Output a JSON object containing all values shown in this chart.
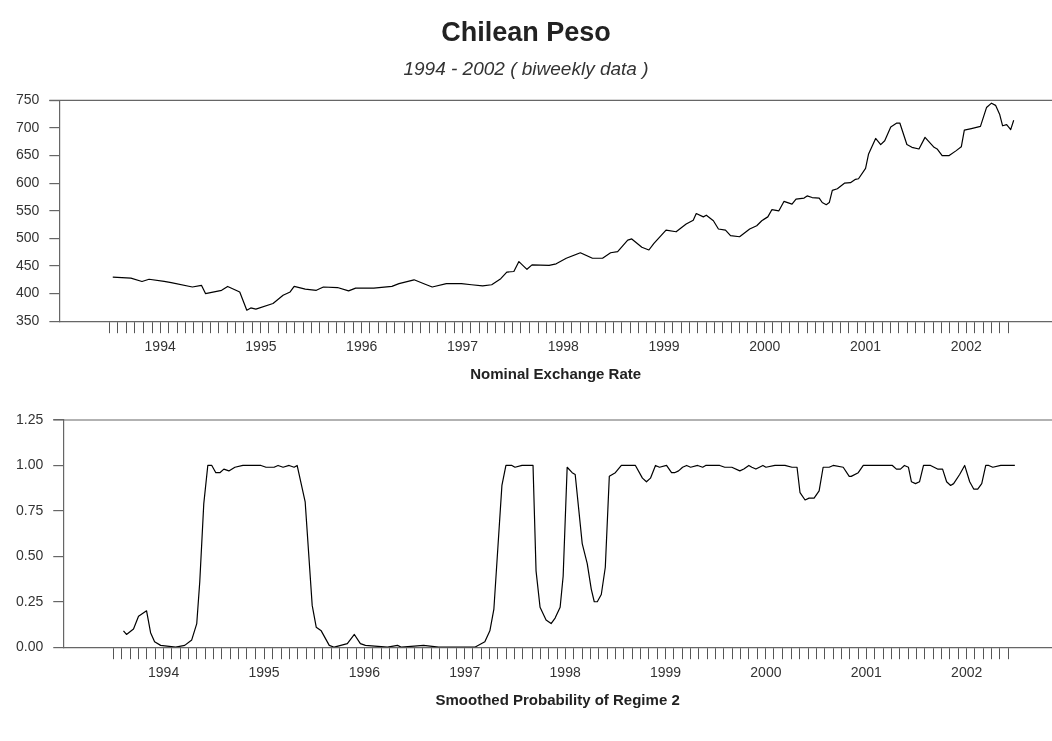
{
  "chart_data": [
    {
      "type": "line",
      "title": "Chilean Peso",
      "subtitle": "1994 - 2002 ( biweekly data )",
      "xlabel": "Nominal Exchange Rate",
      "color": "#000000",
      "grid": false,
      "legend": false,
      "marker": "none",
      "line_style": "solid",
      "x": [
        1993.53,
        1993.71,
        1993.82,
        1993.89,
        1994.04,
        1994.11,
        1994.32,
        1994.41,
        1994.45,
        1994.61,
        1994.67,
        1994.79,
        1994.86,
        1994.9,
        1994.95,
        1995.12,
        1995.22,
        1995.29,
        1995.33,
        1995.44,
        1995.55,
        1995.62,
        1995.76,
        1995.87,
        1995.94,
        1996.12,
        1996.3,
        1996.37,
        1996.52,
        1996.63,
        1996.7,
        1996.84,
        1996.99,
        1997.09,
        1997.2,
        1997.29,
        1997.38,
        1997.44,
        1997.51,
        1997.56,
        1997.64,
        1997.69,
        1997.86,
        1997.93,
        1998.03,
        1998.17,
        1998.29,
        1998.39,
        1998.47,
        1998.54,
        1998.64,
        1998.68,
        1998.78,
        1998.85,
        1998.9,
        1999.02,
        1999.12,
        1999.22,
        1999.29,
        1999.32,
        1999.39,
        1999.42,
        1999.49,
        1999.54,
        1999.61,
        1999.66,
        1999.75,
        1999.85,
        1999.92,
        1999.97,
        2000.03,
        2000.07,
        2000.14,
        2000.19,
        2000.27,
        2000.31,
        2000.39,
        2000.42,
        2000.47,
        2000.54,
        2000.57,
        2000.61,
        2000.64,
        2000.67,
        2000.72,
        2000.79,
        2000.85,
        2000.9,
        2000.93,
        2001.0,
        2001.03,
        2001.1,
        2001.15,
        2001.19,
        2001.25,
        2001.31,
        2001.34,
        2001.41,
        2001.46,
        2001.53,
        2001.59,
        2001.68,
        2001.71,
        2001.76,
        2001.83,
        2001.9,
        2001.95,
        2001.98,
        2002.05,
        2002.14,
        2002.2,
        2002.25,
        2002.29,
        2002.33,
        2002.36,
        2002.4,
        2002.44,
        2002.47
      ],
      "values": [
        430,
        428,
        422,
        426,
        422,
        420,
        412,
        415,
        400,
        406,
        413,
        403,
        370,
        374,
        372,
        382,
        397,
        403,
        413,
        408,
        406,
        412,
        411,
        405,
        410,
        410,
        413,
        418,
        425,
        417,
        412,
        418,
        418,
        416,
        414,
        416,
        427,
        439,
        440,
        458,
        444,
        452,
        451,
        454,
        464,
        474,
        464,
        464,
        474,
        476,
        497,
        499,
        484,
        479,
        491,
        515,
        512,
        526,
        533,
        545,
        539,
        542,
        532,
        517,
        515,
        505,
        503,
        517,
        523,
        532,
        539,
        552,
        550,
        567,
        562,
        571,
        573,
        577,
        574,
        573,
        565,
        561,
        565,
        587,
        590,
        600,
        601,
        607,
        608,
        627,
        653,
        681,
        670,
        677,
        702,
        709,
        709,
        670,
        665,
        662,
        683,
        665,
        662,
        650,
        650,
        659,
        666,
        696,
        699,
        703,
        737,
        745,
        741,
        725,
        704,
        706,
        697,
        714
      ],
      "xlim": [
        1993.0,
        2002.85
      ],
      "ylim": [
        350,
        750
      ],
      "yticks": [
        350,
        400,
        450,
        500,
        550,
        600,
        650,
        700,
        750
      ],
      "xticks": [
        {
          "value": 1993.5,
          "label": null
        },
        {
          "value": 1993.58,
          "label": null
        },
        {
          "value": 1993.67,
          "label": null
        },
        {
          "value": 1993.75,
          "label": null
        },
        {
          "value": 1993.83,
          "label": null
        },
        {
          "value": 1993.92,
          "label": null
        },
        {
          "value": 1994,
          "label": "1994"
        },
        {
          "value": 1994.08,
          "label": null
        },
        {
          "value": 1994.17,
          "label": null
        },
        {
          "value": 1994.25,
          "label": null
        },
        {
          "value": 1994.33,
          "label": null
        },
        {
          "value": 1994.42,
          "label": null
        },
        {
          "value": 1994.5,
          "label": null
        },
        {
          "value": 1994.58,
          "label": null
        },
        {
          "value": 1994.67,
          "label": null
        },
        {
          "value": 1994.75,
          "label": null
        },
        {
          "value": 1994.83,
          "label": null
        },
        {
          "value": 1994.92,
          "label": null
        },
        {
          "value": 1995,
          "label": "1995"
        },
        {
          "value": 1995.08,
          "label": null
        },
        {
          "value": 1995.17,
          "label": null
        },
        {
          "value": 1995.25,
          "label": null
        },
        {
          "value": 1995.33,
          "label": null
        },
        {
          "value": 1995.42,
          "label": null
        },
        {
          "value": 1995.5,
          "label": null
        },
        {
          "value": 1995.58,
          "label": null
        },
        {
          "value": 1995.67,
          "label": null
        },
        {
          "value": 1995.75,
          "label": null
        },
        {
          "value": 1995.83,
          "label": null
        },
        {
          "value": 1995.92,
          "label": null
        },
        {
          "value": 1996,
          "label": "1996"
        },
        {
          "value": 1996.08,
          "label": null
        },
        {
          "value": 1996.17,
          "label": null
        },
        {
          "value": 1996.25,
          "label": null
        },
        {
          "value": 1996.33,
          "label": null
        },
        {
          "value": 1996.42,
          "label": null
        },
        {
          "value": 1996.5,
          "label": null
        },
        {
          "value": 1996.58,
          "label": null
        },
        {
          "value": 1996.67,
          "label": null
        },
        {
          "value": 1996.75,
          "label": null
        },
        {
          "value": 1996.83,
          "label": null
        },
        {
          "value": 1996.92,
          "label": null
        },
        {
          "value": 1997,
          "label": "1997"
        },
        {
          "value": 1997.08,
          "label": null
        },
        {
          "value": 1997.17,
          "label": null
        },
        {
          "value": 1997.25,
          "label": null
        },
        {
          "value": 1997.33,
          "label": null
        },
        {
          "value": 1997.42,
          "label": null
        },
        {
          "value": 1997.5,
          "label": null
        },
        {
          "value": 1997.58,
          "label": null
        },
        {
          "value": 1997.67,
          "label": null
        },
        {
          "value": 1997.75,
          "label": null
        },
        {
          "value": 1997.83,
          "label": null
        },
        {
          "value": 1997.92,
          "label": null
        },
        {
          "value": 1998,
          "label": "1998"
        },
        {
          "value": 1998.08,
          "label": null
        },
        {
          "value": 1998.17,
          "label": null
        },
        {
          "value": 1998.25,
          "label": null
        },
        {
          "value": 1998.33,
          "label": null
        },
        {
          "value": 1998.42,
          "label": null
        },
        {
          "value": 1998.5,
          "label": null
        },
        {
          "value": 1998.58,
          "label": null
        },
        {
          "value": 1998.67,
          "label": null
        },
        {
          "value": 1998.75,
          "label": null
        },
        {
          "value": 1998.83,
          "label": null
        },
        {
          "value": 1998.92,
          "label": null
        },
        {
          "value": 1999,
          "label": "1999"
        },
        {
          "value": 1999.08,
          "label": null
        },
        {
          "value": 1999.17,
          "label": null
        },
        {
          "value": 1999.25,
          "label": null
        },
        {
          "value": 1999.33,
          "label": null
        },
        {
          "value": 1999.42,
          "label": null
        },
        {
          "value": 1999.5,
          "label": null
        },
        {
          "value": 1999.58,
          "label": null
        },
        {
          "value": 1999.67,
          "label": null
        },
        {
          "value": 1999.75,
          "label": null
        },
        {
          "value": 1999.83,
          "label": null
        },
        {
          "value": 1999.92,
          "label": null
        },
        {
          "value": 2000,
          "label": "2000"
        },
        {
          "value": 2000.08,
          "label": null
        },
        {
          "value": 2000.17,
          "label": null
        },
        {
          "value": 2000.25,
          "label": null
        },
        {
          "value": 2000.33,
          "label": null
        },
        {
          "value": 2000.42,
          "label": null
        },
        {
          "value": 2000.5,
          "label": null
        },
        {
          "value": 2000.58,
          "label": null
        },
        {
          "value": 2000.67,
          "label": null
        },
        {
          "value": 2000.75,
          "label": null
        },
        {
          "value": 2000.83,
          "label": null
        },
        {
          "value": 2000.92,
          "label": null
        },
        {
          "value": 2001,
          "label": "2001"
        },
        {
          "value": 2001.08,
          "label": null
        },
        {
          "value": 2001.17,
          "label": null
        },
        {
          "value": 2001.25,
          "label": null
        },
        {
          "value": 2001.33,
          "label": null
        },
        {
          "value": 2001.42,
          "label": null
        },
        {
          "value": 2001.5,
          "label": null
        },
        {
          "value": 2001.58,
          "label": null
        },
        {
          "value": 2001.67,
          "label": null
        },
        {
          "value": 2001.75,
          "label": null
        },
        {
          "value": 2001.83,
          "label": null
        },
        {
          "value": 2001.92,
          "label": null
        },
        {
          "value": 2002,
          "label": "2002"
        },
        {
          "value": 2002.08,
          "label": null
        },
        {
          "value": 2002.17,
          "label": null
        },
        {
          "value": 2002.25,
          "label": null
        },
        {
          "value": 2002.33,
          "label": null
        },
        {
          "value": 2002.42,
          "label": null
        }
      ]
    },
    {
      "type": "line",
      "xlabel": "Smoothed Probability of Regime 2",
      "color": "#000000",
      "grid": false,
      "legend": false,
      "marker": "none",
      "line_style": "solid",
      "x": [
        1993.6,
        1993.63,
        1993.7,
        1993.75,
        1993.83,
        1993.87,
        1993.91,
        1993.97,
        1994.12,
        1994.21,
        1994.28,
        1994.33,
        1994.36,
        1994.4,
        1994.44,
        1994.48,
        1994.52,
        1994.56,
        1994.6,
        1994.65,
        1994.71,
        1994.79,
        1994.97,
        1995.02,
        1995.1,
        1995.14,
        1995.19,
        1995.25,
        1995.3,
        1995.33,
        1995.41,
        1995.48,
        1995.52,
        1995.57,
        1995.65,
        1995.7,
        1995.83,
        1995.9,
        1995.96,
        1996.01,
        1996.23,
        1996.33,
        1996.37,
        1996.59,
        1996.74,
        1997.1,
        1997.2,
        1997.25,
        1997.29,
        1997.37,
        1997.41,
        1997.47,
        1997.5,
        1997.57,
        1997.68,
        1997.71,
        1997.75,
        1997.81,
        1997.86,
        1997.9,
        1997.95,
        1997.98,
        1998.02,
        1998.07,
        1998.1,
        1998.17,
        1998.22,
        1998.26,
        1998.29,
        1998.32,
        1998.36,
        1998.4,
        1998.44,
        1998.5,
        1998.56,
        1998.7,
        1998.77,
        1998.81,
        1998.85,
        1998.9,
        1998.94,
        1999.01,
        1999.06,
        1999.09,
        1999.13,
        1999.17,
        1999.21,
        1999.25,
        1999.32,
        1999.37,
        1999.4,
        1999.54,
        1999.59,
        1999.66,
        1999.74,
        1999.78,
        1999.83,
        1999.86,
        1999.9,
        1999.97,
        2000.0,
        2000.09,
        2000.19,
        2000.26,
        2000.31,
        2000.34,
        2000.39,
        2000.43,
        2000.48,
        2000.53,
        2000.57,
        2000.63,
        2000.67,
        2000.77,
        2000.83,
        2000.85,
        2000.92,
        2000.97,
        2001.08,
        2001.26,
        2001.3,
        2001.34,
        2001.38,
        2001.42,
        2001.45,
        2001.49,
        2001.53,
        2001.57,
        2001.64,
        2001.71,
        2001.76,
        2001.8,
        2001.84,
        2001.87,
        2001.93,
        2001.98,
        2002.03,
        2002.07,
        2002.11,
        2002.15,
        2002.19,
        2002.22,
        2002.26,
        2002.34,
        2002.48
      ],
      "values": [
        0.09,
        0.07,
        0.1,
        0.17,
        0.2,
        0.08,
        0.03,
        0.01,
        0.0,
        0.01,
        0.04,
        0.13,
        0.36,
        0.79,
        1.0,
        1.0,
        0.96,
        0.96,
        0.98,
        0.97,
        0.99,
        1.0,
        1.0,
        0.99,
        0.99,
        1.0,
        0.99,
        1.0,
        0.99,
        1.0,
        0.8,
        0.23,
        0.11,
        0.09,
        0.01,
        0.0,
        0.02,
        0.07,
        0.02,
        0.01,
        0.0,
        0.01,
        0.0,
        0.01,
        0.0,
        0.0,
        0.03,
        0.09,
        0.21,
        0.89,
        1.0,
        1.0,
        0.99,
        1.0,
        1.0,
        0.42,
        0.22,
        0.15,
        0.13,
        0.16,
        0.22,
        0.39,
        0.99,
        0.96,
        0.95,
        0.57,
        0.46,
        0.32,
        0.25,
        0.25,
        0.29,
        0.44,
        0.94,
        0.96,
        1.0,
        1.0,
        0.93,
        0.91,
        0.93,
        1.0,
        0.99,
        1.0,
        0.96,
        0.96,
        0.97,
        0.99,
        1.0,
        0.99,
        1.0,
        0.99,
        1.0,
        1.0,
        0.99,
        0.99,
        0.97,
        0.98,
        1.0,
        0.99,
        0.98,
        1.0,
        0.99,
        1.0,
        1.0,
        0.99,
        0.99,
        0.85,
        0.81,
        0.82,
        0.82,
        0.86,
        0.99,
        0.99,
        1.0,
        0.99,
        0.94,
        0.94,
        0.96,
        1.0,
        1.0,
        1.0,
        0.98,
        0.98,
        1.0,
        0.99,
        0.91,
        0.9,
        0.91,
        1.0,
        1.0,
        0.98,
        0.98,
        0.91,
        0.89,
        0.9,
        0.95,
        1.0,
        0.91,
        0.87,
        0.87,
        0.9,
        1.0,
        1.0,
        0.99,
        1.0,
        1.0
      ],
      "xlim": [
        1993.0,
        2002.85
      ],
      "ylim": [
        0,
        1.25
      ],
      "yticks": [
        {
          "value": 0,
          "label": "0.00"
        },
        {
          "value": 0.25,
          "label": "0.25"
        },
        {
          "value": 0.5,
          "label": "0.50"
        },
        {
          "value": 0.75,
          "label": "0.75"
        },
        {
          "value": 1,
          "label": "1.00"
        },
        {
          "value": 1.25,
          "label": "1.25"
        }
      ],
      "xticks": [
        {
          "value": 1993.5,
          "label": null
        },
        {
          "value": 1993.58,
          "label": null
        },
        {
          "value": 1993.67,
          "label": null
        },
        {
          "value": 1993.75,
          "label": null
        },
        {
          "value": 1993.83,
          "label": null
        },
        {
          "value": 1993.92,
          "label": null
        },
        {
          "value": 1994,
          "label": "1994"
        },
        {
          "value": 1994.08,
          "label": null
        },
        {
          "value": 1994.17,
          "label": null
        },
        {
          "value": 1994.25,
          "label": null
        },
        {
          "value": 1994.33,
          "label": null
        },
        {
          "value": 1994.42,
          "label": null
        },
        {
          "value": 1994.5,
          "label": null
        },
        {
          "value": 1994.58,
          "label": null
        },
        {
          "value": 1994.67,
          "label": null
        },
        {
          "value": 1994.75,
          "label": null
        },
        {
          "value": 1994.83,
          "label": null
        },
        {
          "value": 1994.92,
          "label": null
        },
        {
          "value": 1995,
          "label": "1995"
        },
        {
          "value": 1995.08,
          "label": null
        },
        {
          "value": 1995.17,
          "label": null
        },
        {
          "value": 1995.25,
          "label": null
        },
        {
          "value": 1995.33,
          "label": null
        },
        {
          "value": 1995.42,
          "label": null
        },
        {
          "value": 1995.5,
          "label": null
        },
        {
          "value": 1995.58,
          "label": null
        },
        {
          "value": 1995.67,
          "label": null
        },
        {
          "value": 1995.75,
          "label": null
        },
        {
          "value": 1995.83,
          "label": null
        },
        {
          "value": 1995.92,
          "label": null
        },
        {
          "value": 1996,
          "label": "1996"
        },
        {
          "value": 1996.08,
          "label": null
        },
        {
          "value": 1996.17,
          "label": null
        },
        {
          "value": 1996.25,
          "label": null
        },
        {
          "value": 1996.33,
          "label": null
        },
        {
          "value": 1996.42,
          "label": null
        },
        {
          "value": 1996.5,
          "label": null
        },
        {
          "value": 1996.58,
          "label": null
        },
        {
          "value": 1996.67,
          "label": null
        },
        {
          "value": 1996.75,
          "label": null
        },
        {
          "value": 1996.83,
          "label": null
        },
        {
          "value": 1996.92,
          "label": null
        },
        {
          "value": 1997,
          "label": "1997"
        },
        {
          "value": 1997.08,
          "label": null
        },
        {
          "value": 1997.17,
          "label": null
        },
        {
          "value": 1997.25,
          "label": null
        },
        {
          "value": 1997.33,
          "label": null
        },
        {
          "value": 1997.42,
          "label": null
        },
        {
          "value": 1997.5,
          "label": null
        },
        {
          "value": 1997.58,
          "label": null
        },
        {
          "value": 1997.67,
          "label": null
        },
        {
          "value": 1997.75,
          "label": null
        },
        {
          "value": 1997.83,
          "label": null
        },
        {
          "value": 1997.92,
          "label": null
        },
        {
          "value": 1998,
          "label": "1998"
        },
        {
          "value": 1998.08,
          "label": null
        },
        {
          "value": 1998.17,
          "label": null
        },
        {
          "value": 1998.25,
          "label": null
        },
        {
          "value": 1998.33,
          "label": null
        },
        {
          "value": 1998.42,
          "label": null
        },
        {
          "value": 1998.5,
          "label": null
        },
        {
          "value": 1998.58,
          "label": null
        },
        {
          "value": 1998.67,
          "label": null
        },
        {
          "value": 1998.75,
          "label": null
        },
        {
          "value": 1998.83,
          "label": null
        },
        {
          "value": 1998.92,
          "label": null
        },
        {
          "value": 1999,
          "label": "1999"
        },
        {
          "value": 1999.08,
          "label": null
        },
        {
          "value": 1999.17,
          "label": null
        },
        {
          "value": 1999.25,
          "label": null
        },
        {
          "value": 1999.33,
          "label": null
        },
        {
          "value": 1999.42,
          "label": null
        },
        {
          "value": 1999.5,
          "label": null
        },
        {
          "value": 1999.58,
          "label": null
        },
        {
          "value": 1999.67,
          "label": null
        },
        {
          "value": 1999.75,
          "label": null
        },
        {
          "value": 1999.83,
          "label": null
        },
        {
          "value": 1999.92,
          "label": null
        },
        {
          "value": 2000,
          "label": "2000"
        },
        {
          "value": 2000.08,
          "label": null
        },
        {
          "value": 2000.17,
          "label": null
        },
        {
          "value": 2000.25,
          "label": null
        },
        {
          "value": 2000.33,
          "label": null
        },
        {
          "value": 2000.42,
          "label": null
        },
        {
          "value": 2000.5,
          "label": null
        },
        {
          "value": 2000.58,
          "label": null
        },
        {
          "value": 2000.67,
          "label": null
        },
        {
          "value": 2000.75,
          "label": null
        },
        {
          "value": 2000.83,
          "label": null
        },
        {
          "value": 2000.92,
          "label": null
        },
        {
          "value": 2001,
          "label": "2001"
        },
        {
          "value": 2001.08,
          "label": null
        },
        {
          "value": 2001.17,
          "label": null
        },
        {
          "value": 2001.25,
          "label": null
        },
        {
          "value": 2001.33,
          "label": null
        },
        {
          "value": 2001.42,
          "label": null
        },
        {
          "value": 2001.5,
          "label": null
        },
        {
          "value": 2001.58,
          "label": null
        },
        {
          "value": 2001.67,
          "label": null
        },
        {
          "value": 2001.75,
          "label": null
        },
        {
          "value": 2001.83,
          "label": null
        },
        {
          "value": 2001.92,
          "label": null
        },
        {
          "value": 2002,
          "label": "2002"
        },
        {
          "value": 2002.08,
          "label": null
        },
        {
          "value": 2002.17,
          "label": null
        },
        {
          "value": 2002.25,
          "label": null
        },
        {
          "value": 2002.33,
          "label": null
        },
        {
          "value": 2002.42,
          "label": null
        }
      ]
    }
  ]
}
